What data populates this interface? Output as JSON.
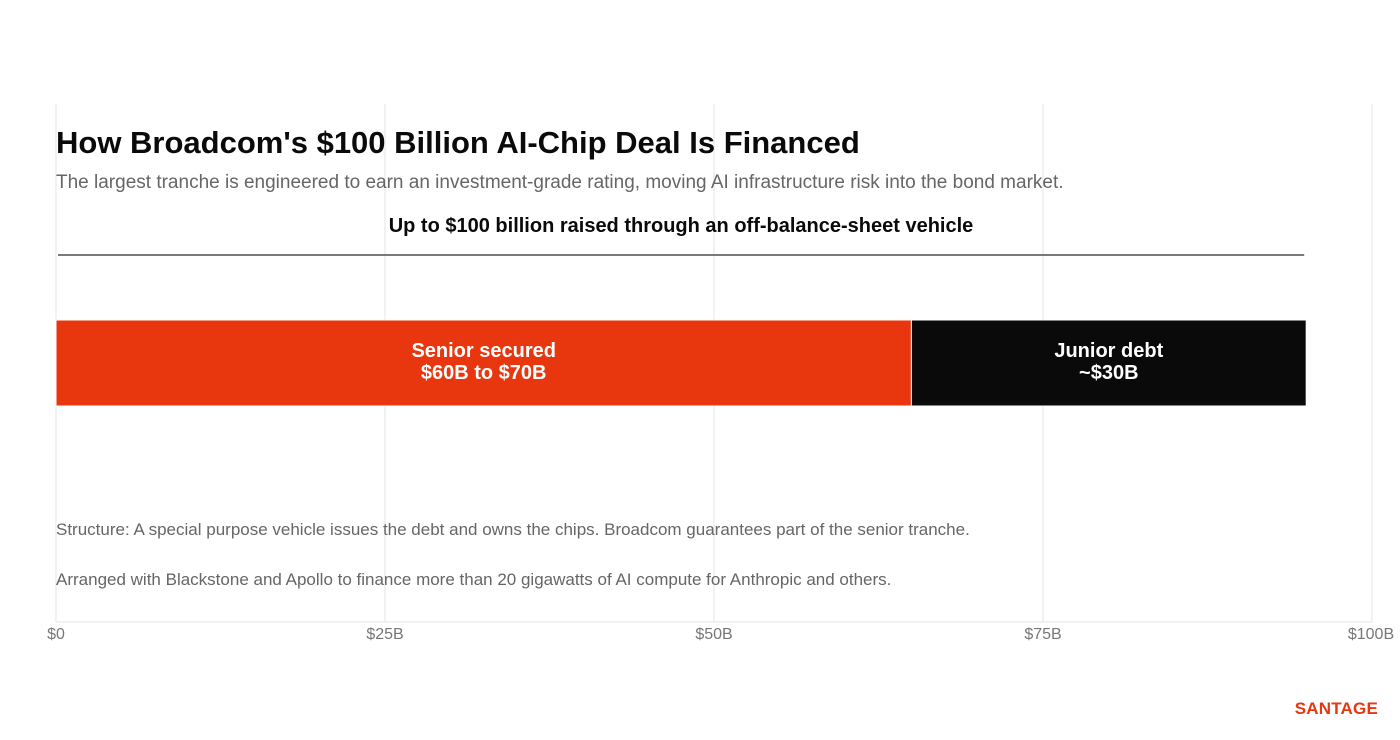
{
  "chart_data": {
    "type": "bar",
    "orientation": "horizontal",
    "stacked": true,
    "title": "How Broadcom's $100 Billion AI-Chip Deal Is Financed",
    "subtitle": "The largest tranche is engineered to earn an investment-grade rating, moving AI infrastructure risk into the bond market.",
    "bracket_label": "Up to $100 billion raised through an off-balance-sheet vehicle",
    "xlim": [
      0,
      100
    ],
    "x_ticks": [
      0,
      25,
      50,
      75,
      100
    ],
    "x_tick_labels": [
      "$0",
      "$25B",
      "$50B",
      "$75B",
      "$100B"
    ],
    "grid": true,
    "segments": [
      {
        "name": "Senior secured",
        "value_label": "$60B to $70B",
        "start": 0,
        "end": 65,
        "color": "#e8360e"
      },
      {
        "name": "Junior debt",
        "value_label": "~$30B",
        "start": 65,
        "end": 95,
        "color": "#0a0a0a"
      }
    ],
    "bracket_range": [
      0,
      95
    ]
  },
  "notes": {
    "structure": "Structure:  A special purpose vehicle issues the debt and owns the chips.  Broadcom guarantees part of the senior tranche.",
    "partners": "Arranged with Blackstone and Apollo to finance more than 20 gigawatts of AI compute for Anthropic and others."
  },
  "brand": "SANTAGE",
  "colors": {
    "accent": "#e8360e",
    "dark": "#0a0a0a",
    "muted_text": "#666666",
    "grid": "#e6e6e6"
  }
}
